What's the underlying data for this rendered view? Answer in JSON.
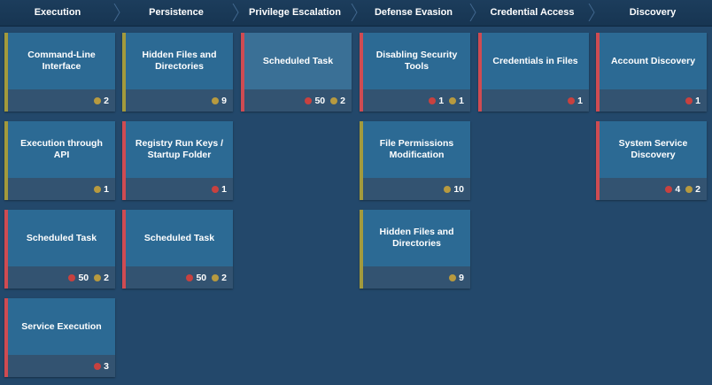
{
  "colors": {
    "red_dot": "#c8413f",
    "yellow_dot": "#b89a3f",
    "red_border": "#cf4b52",
    "yellow_border": "#a39a3c"
  },
  "columns": [
    {
      "title": "Execution",
      "cards": [
        {
          "title": "Command-Line Interface",
          "border": "yellow",
          "counts": [
            {
              "color": "yellow",
              "value": "2"
            }
          ]
        },
        {
          "title": "Execution through API",
          "border": "yellow",
          "counts": [
            {
              "color": "yellow",
              "value": "1"
            }
          ]
        },
        {
          "title": "Scheduled Task",
          "border": "red",
          "counts": [
            {
              "color": "red",
              "value": "50"
            },
            {
              "color": "yellow",
              "value": "2"
            }
          ]
        },
        {
          "title": "Service Execution",
          "border": "red",
          "counts": [
            {
              "color": "red",
              "value": "3"
            }
          ]
        }
      ]
    },
    {
      "title": "Persistence",
      "cards": [
        {
          "title": "Hidden Files and Directories",
          "border": "yellow",
          "counts": [
            {
              "color": "yellow",
              "value": "9"
            }
          ]
        },
        {
          "title": "Registry Run Keys / Startup Folder",
          "border": "red",
          "counts": [
            {
              "color": "red",
              "value": "1"
            }
          ]
        },
        {
          "title": "Scheduled Task",
          "border": "red",
          "counts": [
            {
              "color": "red",
              "value": "50"
            },
            {
              "color": "yellow",
              "value": "2"
            }
          ]
        }
      ]
    },
    {
      "title": "Privilege Escalation",
      "cards": [
        {
          "title": "Scheduled Task",
          "border": "red",
          "highlight": true,
          "counts": [
            {
              "color": "red",
              "value": "50"
            },
            {
              "color": "yellow",
              "value": "2"
            }
          ]
        }
      ]
    },
    {
      "title": "Defense Evasion",
      "cards": [
        {
          "title": "Disabling Security Tools",
          "border": "red",
          "counts": [
            {
              "color": "red",
              "value": "1"
            },
            {
              "color": "yellow",
              "value": "1"
            }
          ]
        },
        {
          "title": "File Permissions Modification",
          "border": "yellow",
          "counts": [
            {
              "color": "yellow",
              "value": "10"
            }
          ]
        },
        {
          "title": "Hidden Files and Directories",
          "border": "yellow",
          "counts": [
            {
              "color": "yellow",
              "value": "9"
            }
          ]
        }
      ]
    },
    {
      "title": "Credential Access",
      "cards": [
        {
          "title": "Credentials in Files",
          "border": "red",
          "counts": [
            {
              "color": "red",
              "value": "1"
            }
          ]
        }
      ]
    },
    {
      "title": "Discovery",
      "cards": [
        {
          "title": "Account Discovery",
          "border": "red",
          "counts": [
            {
              "color": "red",
              "value": "1"
            }
          ]
        },
        {
          "title": "System Service Discovery",
          "border": "red",
          "counts": [
            {
              "color": "red",
              "value": "4"
            },
            {
              "color": "yellow",
              "value": "2"
            }
          ]
        }
      ]
    }
  ]
}
